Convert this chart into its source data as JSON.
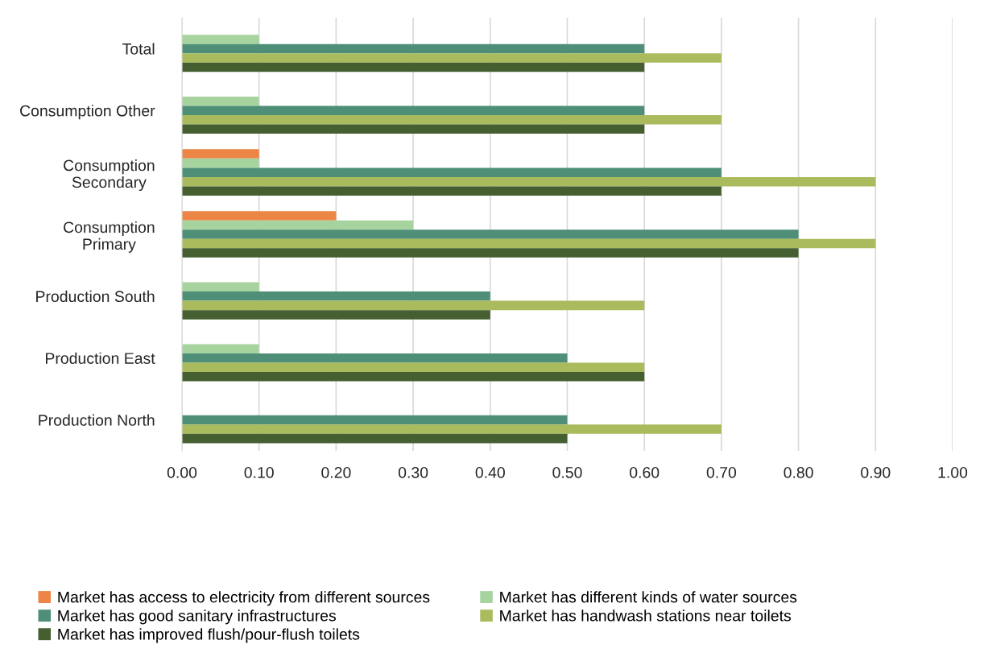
{
  "chart_data": {
    "type": "bar",
    "orientation": "horizontal",
    "categories": [
      "Total",
      "Consumption Other",
      "Consumption\nSecondary",
      "Consumption\nPrimary",
      "Production South",
      "Production East",
      "Production North"
    ],
    "series": [
      {
        "name": "Market has access to electricity from different sources",
        "color": "#ed8547",
        "values": [
          0,
          0,
          0.1,
          0.2,
          0,
          0,
          0
        ]
      },
      {
        "name": "Market has different kinds of water sources",
        "color": "#a7d39e",
        "values": [
          0.1,
          0.1,
          0.1,
          0.3,
          0.1,
          0.1,
          0
        ]
      },
      {
        "name": "Market has good sanitary infrastructures",
        "color": "#4f8f77",
        "values": [
          0.6,
          0.6,
          0.7,
          0.8,
          0.4,
          0.5,
          0.5
        ]
      },
      {
        "name": "Market has handwash stations near toilets",
        "color": "#a9bb5d",
        "values": [
          0.7,
          0.7,
          0.9,
          0.9,
          0.6,
          0.6,
          0.7
        ]
      },
      {
        "name": "Market has improved flush/pour-flush toilets",
        "color": "#455f31",
        "values": [
          0.6,
          0.6,
          0.7,
          0.8,
          0.4,
          0.6,
          0.5
        ]
      }
    ],
    "xlim": [
      0,
      1
    ],
    "xticks": [
      {
        "value": 0,
        "label": "0.00"
      },
      {
        "value": 0.1,
        "label": "0.10"
      },
      {
        "value": 0.2,
        "label": "0.20"
      },
      {
        "value": 0.3,
        "label": "0.30"
      },
      {
        "value": 0.4,
        "label": "0.40"
      },
      {
        "value": 0.5,
        "label": "0.50"
      },
      {
        "value": 0.6,
        "label": "0.60"
      },
      {
        "value": 0.7,
        "label": "0.70"
      },
      {
        "value": 0.8,
        "label": "0.80"
      },
      {
        "value": 0.9,
        "label": "0.90"
      },
      {
        "value": 1.0,
        "label": "1.00"
      }
    ],
    "grid": "x",
    "legend": "bottom"
  }
}
